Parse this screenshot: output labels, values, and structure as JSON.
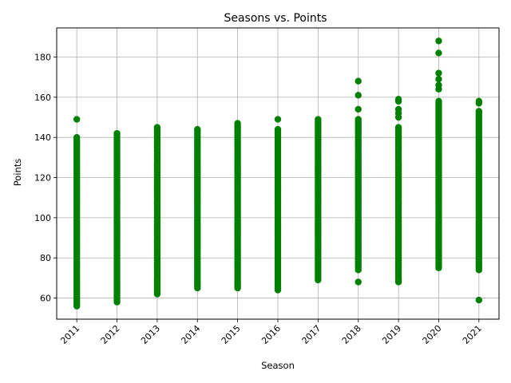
{
  "chart_data": {
    "type": "scatter",
    "title": "Seasons vs. Points",
    "xlabel": "Season",
    "ylabel": "Points",
    "xlim": [
      2010.5,
      2021.5
    ],
    "ylim": [
      49.5,
      194.5
    ],
    "x_ticks": [
      "2011",
      "2012",
      "2013",
      "2014",
      "2015",
      "2016",
      "2017",
      "2018",
      "2019",
      "2020",
      "2021"
    ],
    "y_ticks": [
      "60",
      "80",
      "100",
      "120",
      "140",
      "160",
      "180"
    ],
    "grid": true,
    "marker_color": "#008000",
    "series": [
      {
        "values_by_season": [
          {
            "season": 2011,
            "min": 56,
            "max": 140,
            "extra": [
              56,
              149,
              140,
              133,
              128
            ]
          },
          {
            "season": 2012,
            "min": 58,
            "max": 142,
            "extra": [
              58,
              64,
              142,
              139,
              135
            ]
          },
          {
            "season": 2013,
            "min": 62,
            "max": 145,
            "extra": [
              62,
              145,
              143,
              138
            ]
          },
          {
            "season": 2014,
            "min": 65,
            "max": 144,
            "extra": [
              65,
              144,
              140,
              135
            ]
          },
          {
            "season": 2015,
            "min": 65,
            "max": 147,
            "extra": [
              65,
              147,
              143,
              138
            ]
          },
          {
            "season": 2016,
            "min": 64,
            "max": 144,
            "extra": [
              64,
              149,
              144,
              140
            ]
          },
          {
            "season": 2017,
            "min": 69,
            "max": 149,
            "extra": [
              69,
              149,
              147,
              143
            ]
          },
          {
            "season": 2018,
            "min": 74,
            "max": 149,
            "extra": [
              68,
              74,
              77,
              168,
              161,
              154,
              149
            ]
          },
          {
            "season": 2019,
            "min": 68,
            "max": 145,
            "extra": [
              68,
              159,
              158,
              154,
              152,
              150,
              145
            ]
          },
          {
            "season": 2020,
            "min": 75,
            "max": 158,
            "extra": [
              75,
              188,
              182,
              172,
              169,
              166,
              164
            ]
          },
          {
            "season": 2021,
            "min": 74,
            "max": 153,
            "extra": [
              59,
              74,
              158,
              157,
              153,
              150
            ]
          }
        ]
      }
    ]
  }
}
